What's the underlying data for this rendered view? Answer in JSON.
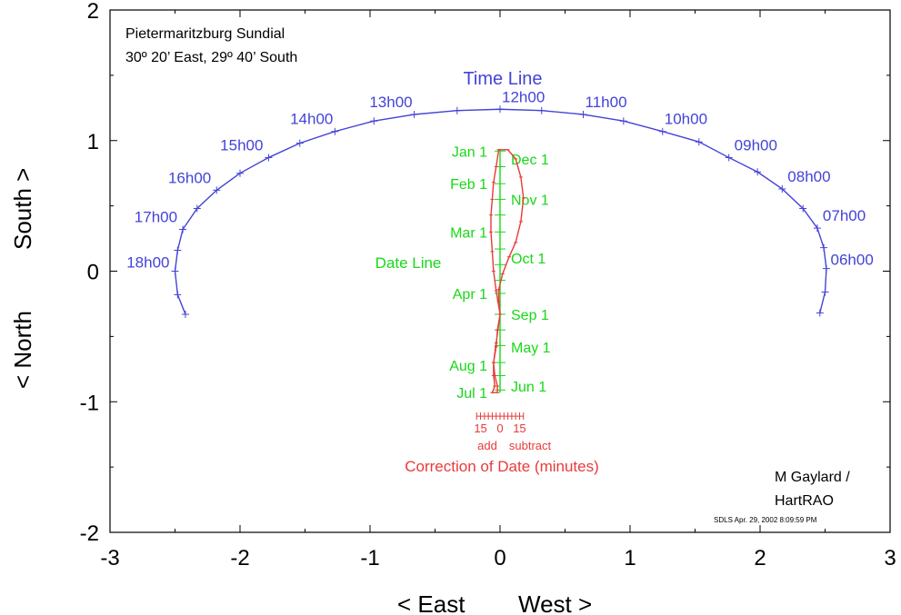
{
  "chart_data": {
    "type": "line",
    "title": "Pietermaritzburg Sundial",
    "subtitle": "30º 20’ East, 29º 40’ South",
    "xlabel_left": "< East",
    "xlabel_right": "West >",
    "ylabel_left": "< North",
    "ylabel_right": "South >",
    "xlim": [
      -3,
      3
    ],
    "ylim": [
      -2,
      2
    ],
    "x_ticks": [
      -3,
      -2,
      -1,
      0,
      1,
      2,
      3
    ],
    "x_tick_labels": [
      "-3",
      "-2",
      "-1",
      "0",
      "1",
      "2",
      "3"
    ],
    "y_ticks": [
      -2,
      -1,
      0,
      1,
      2
    ],
    "y_tick_labels": [
      "-2",
      "-1",
      "0",
      "1",
      "2"
    ],
    "grid": false,
    "time_line": {
      "name": "Time Line",
      "color": "#4343d8",
      "points": [
        [
          -2.42,
          -0.33
        ],
        [
          -2.48,
          -0.18
        ],
        [
          -2.5,
          0.0
        ],
        [
          -2.48,
          0.16
        ],
        [
          -2.44,
          0.32
        ],
        [
          -2.33,
          0.48
        ],
        [
          -2.18,
          0.62
        ],
        [
          -2.0,
          0.75
        ],
        [
          -1.78,
          0.87
        ],
        [
          -1.54,
          0.98
        ],
        [
          -1.27,
          1.07
        ],
        [
          -0.97,
          1.15
        ],
        [
          -0.66,
          1.2
        ],
        [
          -0.33,
          1.23
        ],
        [
          0.0,
          1.24
        ],
        [
          0.32,
          1.23
        ],
        [
          0.64,
          1.2
        ],
        [
          0.95,
          1.15
        ],
        [
          1.25,
          1.07
        ],
        [
          1.53,
          0.99
        ],
        [
          1.76,
          0.87
        ],
        [
          1.98,
          0.76
        ],
        [
          2.17,
          0.63
        ],
        [
          2.33,
          0.48
        ],
        [
          2.44,
          0.33
        ],
        [
          2.49,
          0.18
        ],
        [
          2.51,
          0.02
        ],
        [
          2.5,
          -0.16
        ],
        [
          2.46,
          -0.32
        ]
      ],
      "hour_labels": [
        {
          "text": "18h00",
          "x": -2.5,
          "y": 0.0
        },
        {
          "text": "17h00",
          "x": -2.44,
          "y": 0.32
        },
        {
          "text": "16h00",
          "x": -2.18,
          "y": 0.62
        },
        {
          "text": "15h00",
          "x": -1.78,
          "y": 0.87
        },
        {
          "text": "14h00",
          "x": -1.27,
          "y": 1.07
        },
        {
          "text": "13h00",
          "x": -0.66,
          "y": 1.2
        },
        {
          "text": "12h00",
          "x": 0.0,
          "y": 1.24
        },
        {
          "text": "11h00",
          "x": 0.64,
          "y": 1.2
        },
        {
          "text": "10h00",
          "x": 1.25,
          "y": 1.07
        },
        {
          "text": "09h00",
          "x": 1.76,
          "y": 0.87
        },
        {
          "text": "08h00",
          "x": 2.17,
          "y": 0.63
        },
        {
          "text": "07h00",
          "x": 2.44,
          "y": 0.33
        },
        {
          "text": "06h00",
          "x": 2.5,
          "y": 0.02
        }
      ]
    },
    "date_line": {
      "name": "Date Line",
      "color": "#18d818",
      "x": 0.0,
      "y_range": [
        -0.93,
        0.93
      ],
      "tick_ys": [
        0.92,
        0.8,
        0.67,
        0.55,
        0.43,
        0.3,
        0.17,
        0.05,
        -0.07,
        -0.17,
        -0.33,
        -0.45,
        -0.57,
        -0.7,
        -0.8,
        -0.91
      ],
      "date_labels": [
        {
          "text": "Jan 1",
          "x": 0.0,
          "y": 0.92,
          "side": "left"
        },
        {
          "text": "Feb 1",
          "x": 0.0,
          "y": 0.67,
          "side": "left"
        },
        {
          "text": "Mar 1",
          "x": 0.0,
          "y": 0.3,
          "side": "left"
        },
        {
          "text": "Apr 1",
          "x": 0.0,
          "y": -0.17,
          "side": "left"
        },
        {
          "text": "Aug 1",
          "x": 0.0,
          "y": -0.72,
          "side": "left"
        },
        {
          "text": "Jul 1",
          "x": 0.0,
          "y": -0.93,
          "side": "left"
        },
        {
          "text": "Dec 1",
          "x": 0.0,
          "y": 0.86,
          "side": "right"
        },
        {
          "text": "Nov 1",
          "x": 0.0,
          "y": 0.55,
          "side": "right"
        },
        {
          "text": "Oct 1",
          "x": 0.0,
          "y": 0.1,
          "side": "right"
        },
        {
          "text": "Sep 1",
          "x": 0.0,
          "y": -0.33,
          "side": "right"
        },
        {
          "text": "May 1",
          "x": 0.0,
          "y": -0.58,
          "side": "right"
        },
        {
          "text": "Jun 1",
          "x": 0.0,
          "y": -0.88,
          "side": "right"
        }
      ]
    },
    "analemma": {
      "name": "Correction of Date (minutes)",
      "color": "#e83a3a",
      "points": [
        [
          0.0,
          0.93
        ],
        [
          0.06,
          0.93
        ],
        [
          0.12,
          0.86
        ],
        [
          0.16,
          0.72
        ],
        [
          0.18,
          0.56
        ],
        [
          0.16,
          0.38
        ],
        [
          0.12,
          0.22
        ],
        [
          0.07,
          0.11
        ],
        [
          0.02,
          -0.02
        ],
        [
          -0.01,
          -0.14
        ],
        [
          -0.01,
          -0.23
        ],
        [
          0.0,
          -0.33
        ],
        [
          -0.02,
          -0.45
        ],
        [
          -0.03,
          -0.58
        ],
        [
          -0.05,
          -0.7
        ],
        [
          -0.04,
          -0.8
        ],
        [
          -0.02,
          -0.88
        ],
        [
          -0.02,
          -0.93
        ],
        [
          -0.06,
          -0.93
        ],
        [
          -0.04,
          -0.88
        ],
        [
          -0.05,
          -0.8
        ],
        [
          -0.05,
          -0.7
        ],
        [
          -0.03,
          -0.55
        ],
        [
          0.0,
          -0.33
        ],
        [
          -0.03,
          -0.15
        ],
        [
          -0.05,
          0.0
        ],
        [
          -0.06,
          0.15
        ],
        [
          -0.07,
          0.3
        ],
        [
          -0.07,
          0.43
        ],
        [
          -0.06,
          0.55
        ],
        [
          -0.05,
          0.68
        ],
        [
          -0.03,
          0.8
        ],
        [
          -0.01,
          0.93
        ],
        [
          0.0,
          0.93
        ]
      ],
      "scale_ticks_x": [
        -0.18,
        -0.15,
        -0.12,
        -0.09,
        -0.06,
        -0.03,
        0.0,
        0.03,
        0.06,
        0.09,
        0.12,
        0.15,
        0.18
      ],
      "scale_y": -1.11,
      "scale_labels": [
        {
          "text": "15",
          "x": -0.15
        },
        {
          "text": "0",
          "x": 0.0
        },
        {
          "text": "15",
          "x": 0.15
        }
      ],
      "add_label": "add",
      "subtract_label": "subtract"
    },
    "credit": [
      "M Gaylard /",
      "HartRAO"
    ],
    "stamp": "SDLS  Apr. 29, 2002  8:09:59 PM"
  }
}
